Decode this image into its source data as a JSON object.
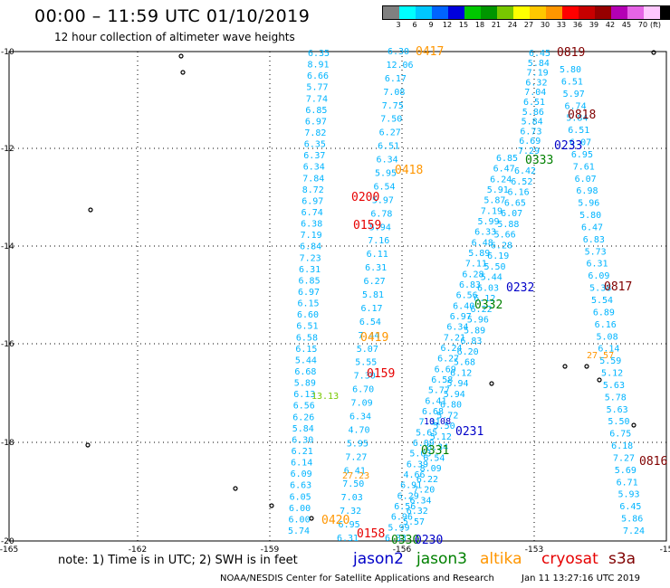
{
  "title": "00:00 – 11:59 UTC 01/10/2019",
  "subtitle": "12 hour collection of altimeter wave heights",
  "colorbar": {
    "colors": [
      "#808080",
      "#00ffff",
      "#00c8ff",
      "#0064ff",
      "#0000dc",
      "#00c800",
      "#009600",
      "#78c800",
      "#ffff00",
      "#ffc800",
      "#ff9600",
      "#ff0000",
      "#c80000",
      "#960000",
      "#b400b4",
      "#e664e6",
      "#ffc8ff",
      "#000000"
    ],
    "ticks": [
      "3",
      "6",
      "9",
      "12",
      "15",
      "18",
      "21",
      "24",
      "27",
      "30",
      "33",
      "36",
      "39",
      "42",
      "45",
      "70"
    ],
    "unit": "(ft)"
  },
  "axes": {
    "lon_labels": [
      "-165",
      "-162",
      "-159",
      "-156",
      "-153",
      "-15"
    ],
    "lat_labels": [
      "-10",
      "-12",
      "-14",
      "-16",
      "-18",
      "-20"
    ]
  },
  "tracks": {
    "t1": [
      "6.35",
      "8.91",
      "6.66",
      "5.77",
      "7.74",
      "6.85",
      "6.97",
      "7.82",
      "6.35",
      "6.37",
      "6.34",
      "7.84",
      "8.72",
      "6.97",
      "6.74",
      "6.38",
      "7.19",
      "6.84",
      "7.23",
      "6.31",
      "6.85",
      "6.97",
      "6.15",
      "6.60",
      "6.51",
      "6.58",
      "6.15",
      "5.44",
      "6.68",
      "5.89",
      "6.13",
      "6.56",
      "6.26",
      "5.84",
      "6.30",
      "6.21",
      "6.14",
      "6.09",
      "6.63",
      "6.05",
      "6.00",
      "6.00",
      "5.74"
    ],
    "t2": [
      "6.30",
      "12.06",
      "6.17",
      "7.08",
      "7.75",
      "7.50",
      "6.27",
      "6.51",
      "6.34",
      "5.95",
      "6.54",
      "5.97",
      "6.78",
      "5.94",
      "7.16",
      "6.11",
      "6.31",
      "6.27",
      "5.81",
      "6.17",
      "6.54",
      "7.44",
      "5.07",
      "5.55",
      "7.30",
      "6.70",
      "7.09",
      "6.34",
      "4.70",
      "5.95",
      "7.27",
      "6.41",
      "7.50",
      "7.03",
      "7.32",
      "6.95",
      "6.31"
    ],
    "t3": [
      "6.85",
      "6.47",
      "6.24",
      "5.91",
      "5.87",
      "7.19",
      "5.99",
      "6.33",
      "6.48",
      "5.89",
      "7.11",
      "6.28",
      "6.83",
      "6.56",
      "6.40",
      "6.97",
      "6.34",
      "7.21",
      "6.24",
      "6.27",
      "6.69",
      "6.58",
      "5.77",
      "6.41",
      "6.68",
      "7.31",
      "5.65",
      "6.09",
      "5.03",
      "6.39",
      "4.66",
      "6.91",
      "6.29",
      "6.56",
      "6.96",
      "5.99",
      "6.33"
    ],
    "t4": [
      "6.42",
      "6.52",
      "6.16",
      "6.65",
      "6.07",
      "5.88",
      "5.66",
      "6.28",
      "6.19",
      "5.50",
      "5.44",
      "6.03",
      "6.12",
      "6.22",
      "5.96",
      "5.89",
      "6.83",
      "6.20",
      "5.68",
      "6.12",
      "5.94",
      "5.94",
      "6.80",
      "5.72",
      "5.50",
      "5.12",
      "8.34",
      "6.54",
      "8.09",
      "6.22",
      "7.20",
      "6.34",
      "6.32",
      "5.57"
    ],
    "t5": [
      "6.45",
      "5.84",
      "7.19",
      "6.32",
      "7.04",
      "6.51",
      "5.86",
      "5.84",
      "6.73",
      "6.69",
      "7.29"
    ],
    "t6": [
      "5.80",
      "6.51",
      "5.97",
      "6.74",
      "5.84",
      "6.51",
      "6.07",
      "6.95",
      "7.61",
      "6.07",
      "6.98",
      "5.96",
      "5.80",
      "6.47",
      "6.83",
      "5.73",
      "6.31",
      "6.09",
      "5.38",
      "5.54",
      "6.89",
      "6.16",
      "5.08",
      "6.14",
      "5.59",
      "5.12",
      "5.63",
      "5.78",
      "5.63",
      "5.50",
      "6.75",
      "6.18",
      "7.27",
      "5.69",
      "6.71",
      "5.93",
      "6.45",
      "5.86",
      "7.24"
    ],
    "big_values": [
      "10.08",
      "13.13",
      "27.23",
      "27.57"
    ]
  },
  "passes": [
    {
      "label": "0417",
      "mission": "altika"
    },
    {
      "label": "0819",
      "mission": "s3a"
    },
    {
      "label": "0818",
      "mission": "s3a"
    },
    {
      "label": "0233",
      "mission": "jason2"
    },
    {
      "label": "0333",
      "mission": "jason3"
    },
    {
      "label": "0418",
      "mission": "altika"
    },
    {
      "label": "0200",
      "mission": "cryosat"
    },
    {
      "label": "0159",
      "mission": "cryosat"
    },
    {
      "label": "0232",
      "mission": "jason2"
    },
    {
      "label": "0817",
      "mission": "s3a"
    },
    {
      "label": "0332",
      "mission": "jason3"
    },
    {
      "label": "0419",
      "mission": "altika"
    },
    {
      "label": "0159",
      "mission": "cryosat"
    },
    {
      "label": "0231",
      "mission": "jason2"
    },
    {
      "label": "0331",
      "mission": "jason3"
    },
    {
      "label": "0816",
      "mission": "s3a"
    },
    {
      "label": "0420",
      "mission": "altika"
    },
    {
      "label": "0158",
      "mission": "cryosat"
    },
    {
      "label": "0330",
      "mission": "jason3"
    },
    {
      "label": "0230",
      "mission": "jason2"
    }
  ],
  "mission_colors": {
    "jason2": "#0000c8",
    "jason3": "#008000",
    "altika": "#ff9600",
    "cryosat": "#e60000",
    "s3a": "#800000",
    "value": "#00b4ff",
    "big": "#78c800"
  },
  "legend": {
    "note": "note: 1) Time is in UTC; 2) SWH is in feet",
    "missions": [
      "jason2",
      "jason3",
      "altika",
      "cryosat",
      "s3a"
    ]
  },
  "footer": "NOAA/NESDIS Center for Satellite Applications and Research",
  "timestamp": "Jan 11 13:27:16 UTC 2019"
}
